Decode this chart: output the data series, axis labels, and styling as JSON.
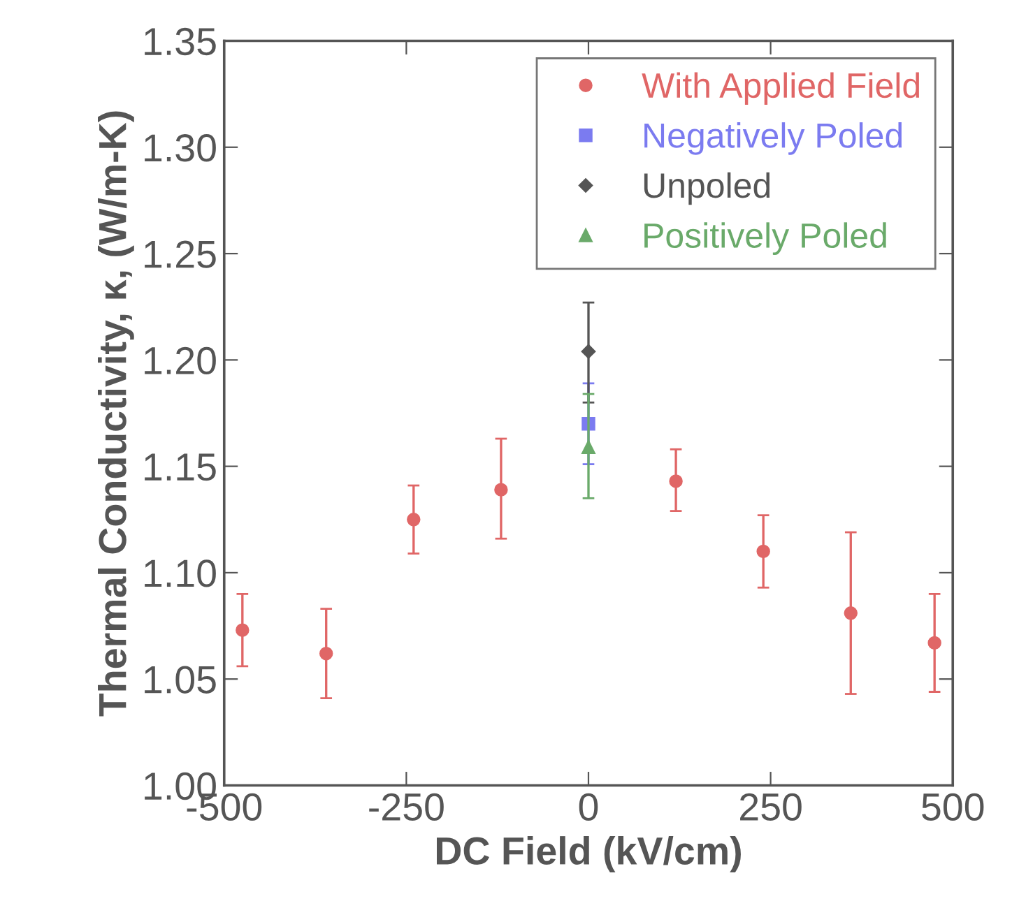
{
  "chart_data": {
    "type": "scatter",
    "xlabel": "DC Field (kV/cm)",
    "ylabel": "Thermal Conductivity, κ, (W/m-K)",
    "xlim": [
      -500,
      500
    ],
    "xticks": [
      -500,
      -250,
      0,
      250,
      500
    ],
    "ylim": [
      1.0,
      1.35
    ],
    "yticks": [
      {
        "value": 1.0,
        "label": "1.00"
      },
      {
        "value": 1.05,
        "label": "1.05"
      },
      {
        "value": 1.1,
        "label": "1.10"
      },
      {
        "value": 1.15,
        "label": "1.15"
      },
      {
        "value": 1.2,
        "label": "1.20"
      },
      {
        "value": 1.25,
        "label": "1.25"
      },
      {
        "value": 1.3,
        "label": "1.30"
      },
      {
        "value": 1.35,
        "label": "1.35"
      }
    ],
    "grid": false,
    "legend": "top right",
    "series": [
      {
        "name": "With Applied Field",
        "color": "#e06666",
        "marker": "circle",
        "x": [
          -475,
          -360,
          -240,
          -120,
          120,
          240,
          360,
          475
        ],
        "values": [
          1.073,
          1.062,
          1.125,
          1.139,
          1.143,
          1.11,
          1.081,
          1.067
        ],
        "errors": [
          [
            1.056,
            1.09
          ],
          [
            1.041,
            1.083
          ],
          [
            1.109,
            1.141
          ],
          [
            1.116,
            1.163
          ],
          [
            1.129,
            1.158
          ],
          [
            1.093,
            1.127
          ],
          [
            1.043,
            1.119
          ],
          [
            1.044,
            1.09
          ]
        ]
      },
      {
        "name": "Negatively Poled",
        "color": "#7b7bf0",
        "marker": "square",
        "x": [
          0
        ],
        "values": [
          1.17
        ],
        "errors": [
          [
            1.151,
            1.189
          ]
        ]
      },
      {
        "name": "Unpoled",
        "color": "#555555",
        "marker": "diamond",
        "x": [
          0
        ],
        "values": [
          1.204
        ],
        "errors": [
          [
            1.18,
            1.227
          ]
        ]
      },
      {
        "name": "Positively Poled",
        "color": "#6aaa6a",
        "marker": "triangle",
        "x": [
          0
        ],
        "values": [
          1.159
        ],
        "errors": [
          [
            1.135,
            1.184
          ]
        ]
      }
    ]
  }
}
